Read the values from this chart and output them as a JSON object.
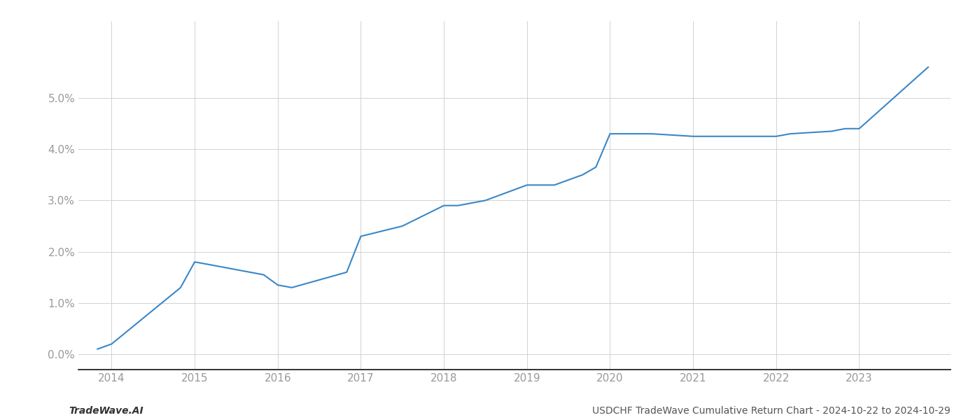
{
  "x_years": [
    2013.83,
    2014.0,
    2014.83,
    2015.0,
    2015.17,
    2015.83,
    2016.0,
    2016.17,
    2016.83,
    2017.0,
    2017.5,
    2018.0,
    2018.17,
    2018.5,
    2019.0,
    2019.33,
    2019.67,
    2019.83,
    2020.0,
    2020.17,
    2020.5,
    2021.0,
    2021.5,
    2022.0,
    2022.17,
    2022.67,
    2022.83,
    2023.0,
    2023.83
  ],
  "y_values": [
    0.001,
    0.002,
    0.013,
    0.018,
    0.0175,
    0.0155,
    0.0135,
    0.013,
    0.016,
    0.023,
    0.025,
    0.029,
    0.029,
    0.03,
    0.033,
    0.033,
    0.035,
    0.0365,
    0.043,
    0.043,
    0.043,
    0.0425,
    0.0425,
    0.0425,
    0.043,
    0.0435,
    0.044,
    0.044,
    0.056
  ],
  "line_color": "#3a87c8",
  "line_width": 1.5,
  "background_color": "#ffffff",
  "grid_color": "#cccccc",
  "footer_left": "TradeWave.AI",
  "footer_right": "USDCHF TradeWave Cumulative Return Chart - 2024-10-22 to 2024-10-29",
  "xlim": [
    2013.6,
    2024.1
  ],
  "ylim": [
    -0.003,
    0.065
  ],
  "xtick_years": [
    2014,
    2015,
    2016,
    2017,
    2018,
    2019,
    2020,
    2021,
    2022,
    2023
  ],
  "ytick_values": [
    0.0,
    0.01,
    0.02,
    0.03,
    0.04,
    0.05
  ],
  "tick_color": "#999999",
  "tick_fontsize": 11,
  "footer_fontsize": 10,
  "spine_bottom_color": "#111111",
  "grid_linewidth": 0.6
}
